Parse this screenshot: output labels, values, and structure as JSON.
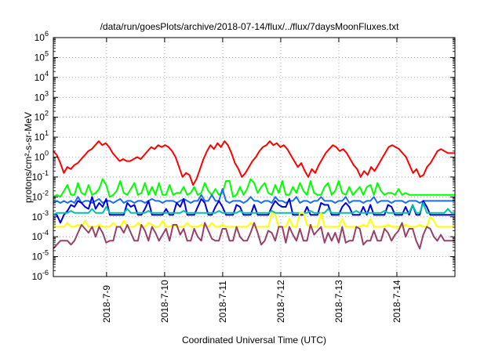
{
  "chart_data": {
    "type": "line",
    "title": "/data/run/goesPlots/archive/2018-07-14/flux/../flux/7daysMoonFluxes.txt",
    "xlabel": "Coordinated Universal Time (UTC)",
    "ylabel": "protons/cm²-s-sr-MeV",
    "yscale": "log",
    "ylim_exponent": [
      -6,
      6
    ],
    "y_ticks": [
      "10-6",
      "10-5",
      "10-4",
      "10-3",
      "10-2",
      "10-1",
      "100",
      "101",
      "102",
      "103",
      "104",
      "105",
      "106"
    ],
    "xlim_days": [
      "2018-07-08 02:00",
      "2018-07-15 00:00"
    ],
    "x_ticks": [
      "2018-7-9",
      "2018-7-10",
      "2018-7-11",
      "2018-7-12",
      "2018-7-13",
      "2018-7-14"
    ],
    "grid": true,
    "legend": "none",
    "series": [
      {
        "color": "#ff0000",
        "log10_values": [
          0.3,
          0.1,
          -0.3,
          -0.8,
          -0.5,
          -0.6,
          -0.4,
          -0.3,
          -0.1,
          0.1,
          0.3,
          0.4,
          0.6,
          0.8,
          0.6,
          0.7,
          0.5,
          0.2,
          0.0,
          -0.2,
          -0.1,
          -0.2,
          -0.2,
          -0.1,
          0.0,
          -0.1,
          0.1,
          0.3,
          0.5,
          0.4,
          0.6,
          0.5,
          0.6,
          0.5,
          0.3,
          0.0,
          -0.5,
          -1.0,
          -0.8,
          -0.9,
          -1.4,
          -1.1,
          -0.6,
          -0.1,
          0.3,
          0.6,
          0.4,
          0.7,
          0.5,
          0.8,
          0.6,
          0.2,
          -0.3,
          -0.6,
          -1.0,
          -0.8,
          -0.5,
          -0.2,
          0.0,
          0.3,
          0.5,
          0.6,
          0.8,
          0.6,
          0.7,
          0.5,
          0.6,
          0.4,
          0.1,
          -0.2,
          -0.5,
          -0.3,
          -0.7,
          -1.0,
          -0.6,
          -0.8,
          -0.4,
          -0.1,
          0.2,
          0.4,
          0.6,
          0.5,
          0.3,
          0.4,
          0.2,
          -0.1,
          -0.4,
          -0.6,
          -1.0,
          -0.7,
          -0.9,
          -0.5,
          -0.7,
          -0.4,
          -0.1,
          0.2,
          0.5,
          0.6,
          0.5,
          0.4,
          0.2,
          0.0,
          -0.4,
          -0.8,
          -0.6,
          -1.0,
          -0.9,
          -0.5,
          -0.3,
          0.0,
          0.3,
          0.4,
          0.3,
          0.2,
          0.2,
          0.2
        ]
      },
      {
        "color": "#00ff00",
        "log10_values": [
          -2.0,
          -1.9,
          -2.0,
          -1.7,
          -1.4,
          -1.9,
          -1.9,
          -1.3,
          -1.8,
          -1.9,
          -1.4,
          -1.9,
          -1.8,
          -1.6,
          -1.1,
          -1.4,
          -2.0,
          -1.9,
          -1.7,
          -1.2,
          -1.8,
          -1.9,
          -1.6,
          -1.3,
          -1.9,
          -1.8,
          -1.3,
          -1.9,
          -1.5,
          -1.9,
          -1.3,
          -1.9,
          -1.9,
          -1.4,
          -1.9,
          -1.8,
          -1.8,
          -1.5,
          -1.9,
          -1.8,
          -1.5,
          -1.9,
          -1.8,
          -1.3,
          -1.7,
          -1.9,
          -1.6,
          -1.9,
          -1.8,
          -1.2,
          -1.2,
          -2.0,
          -1.9,
          -1.5,
          -1.9,
          -1.6,
          -1.1,
          -1.3,
          -1.8,
          -1.5,
          -1.3,
          -1.8,
          -1.9,
          -1.4,
          -1.8,
          -1.2,
          -1.9,
          -1.9,
          -1.5,
          -1.8,
          -1.3,
          -1.7,
          -1.9,
          -1.2,
          -1.8,
          -1.9,
          -1.9,
          -1.5,
          -1.3,
          -1.9,
          -1.7,
          -1.2,
          -1.8,
          -1.9,
          -1.5,
          -1.9,
          -1.7,
          -1.5,
          -1.9,
          -1.5,
          -1.4,
          -1.9,
          -1.3,
          -1.7,
          -1.9,
          -1.8,
          -1.8,
          -1.9,
          -1.6,
          -1.9,
          -1.8,
          -1.9,
          -1.9,
          -1.9,
          -1.9,
          -1.9,
          -1.9,
          -1.9,
          -1.9,
          -1.9,
          -1.9,
          -1.9,
          -1.9,
          -1.9,
          -1.9
        ]
      },
      {
        "color": "#1a6ff0",
        "log10_values": [
          -2.3,
          -2.2,
          -2.3,
          -2.2,
          -2.3,
          -2.2,
          -2.3,
          -2.0,
          -2.3,
          -2.2,
          -2.2,
          -2.3,
          -2.2,
          -2.1,
          -2.3,
          -2.2,
          -2.2,
          -2.3,
          -2.2,
          -2.1,
          -2.3,
          -2.2,
          -2.2,
          -2.3,
          -2.2,
          -2.2,
          -2.3,
          -2.2,
          -2.1,
          -2.2,
          -2.2,
          -2.3,
          -2.2,
          -2.2,
          -2.2,
          -2.3,
          -2.2,
          -2.1,
          -2.2,
          -2.3,
          -2.2,
          -2.2,
          -1.9,
          -2.2,
          -2.2,
          -1.9,
          -2.2,
          -2.2,
          -1.6,
          -2.2,
          -2.3,
          -2.2,
          -2.2,
          -2.2,
          -2.3,
          -2.2,
          -2.0,
          -2.2,
          -2.2,
          -2.3,
          -2.2,
          -2.2,
          -2.3,
          -2.0,
          -2.2,
          -2.2,
          -2.3,
          -2.2,
          -2.2,
          -2.0,
          -2.3,
          -2.2,
          -2.2,
          -2.3,
          -2.2,
          -2.2,
          -2.0,
          -2.2,
          -2.2,
          -2.2,
          -2.3,
          -2.2,
          -2.2,
          -2.0,
          -2.3,
          -2.2,
          -2.2,
          -2.2,
          -2.3,
          -2.2,
          -2.2,
          -2.0,
          -2.3,
          -2.2,
          -2.2,
          -2.2,
          -2.3,
          -2.2,
          -2.2,
          -2.2,
          -2.3,
          -2.2,
          -2.2,
          -2.2,
          -2.3,
          -2.2,
          -2.2,
          -2.2,
          -2.2,
          -2.2,
          -2.2,
          -2.2,
          -2.2,
          -2.2,
          -2.2
        ]
      },
      {
        "color": "#0000dd",
        "log10_values": [
          -2.9,
          -2.9,
          -3.3,
          -2.9,
          -2.7,
          -2.4,
          -2.5,
          -2.2,
          -2.3,
          -2.5,
          -2.6,
          -2.0,
          -2.6,
          -2.3,
          -2.5,
          -2.1,
          -2.9,
          -2.9,
          -2.9,
          -2.9,
          -2.9,
          -2.3,
          -2.5,
          -2.4,
          -2.9,
          -2.9,
          -2.6,
          -2.2,
          -2.9,
          -2.9,
          -2.9,
          -2.9,
          -2.6,
          -2.9,
          -2.9,
          -2.3,
          -2.5,
          -2.1,
          -2.9,
          -2.9,
          -2.9,
          -2.5,
          -2.1,
          -2.3,
          -2.9,
          -2.9,
          -2.5,
          -2.2,
          -2.5,
          -2.9,
          -2.9,
          -2.9,
          -2.4,
          -2.5,
          -2.9,
          -2.9,
          -2.9,
          -2.4,
          -2.9,
          -2.9,
          -2.9,
          -2.9,
          -2.5,
          -2.2,
          -2.4,
          -2.5,
          -2.5,
          -2.1,
          -2.9,
          -2.9,
          -2.9,
          -2.9,
          -2.5,
          -2.9,
          -2.9,
          -2.9,
          -2.3,
          -2.4,
          -2.4,
          -2.9,
          -2.9,
          -2.9,
          -2.5,
          -2.3,
          -2.5,
          -2.9,
          -2.9,
          -2.9,
          -2.5,
          -2.9,
          -2.4,
          -2.9,
          -2.9,
          -2.9,
          -2.9,
          -2.4,
          -2.5,
          -2.9,
          -2.9,
          -2.9,
          -2.5,
          -2.9,
          -2.4,
          -2.9,
          -2.9,
          -2.2,
          -2.5,
          -2.9,
          -2.9,
          -2.9,
          -2.9,
          -2.9,
          -2.9,
          -2.9,
          -2.9
        ]
      },
      {
        "color": "#00c0a8",
        "log10_values": [
          -2.9,
          -2.8,
          -2.8,
          -2.8,
          -2.8,
          -2.7,
          -2.8,
          -2.8,
          -2.8,
          -2.8,
          -2.8,
          -2.6,
          -2.8,
          -2.8,
          -2.8,
          -2.5,
          -2.8,
          -2.8,
          -2.8,
          -2.8,
          -2.8,
          -2.6,
          -2.8,
          -2.8,
          -2.8,
          -2.8,
          -2.8,
          -2.7,
          -2.8,
          -2.8,
          -2.8,
          -2.8,
          -2.8,
          -2.8,
          -2.8,
          -2.8,
          -2.8,
          -2.7,
          -2.8,
          -2.8,
          -2.8,
          -2.8,
          -2.8,
          -2.8,
          -2.8,
          -2.8,
          -2.8,
          -2.7,
          -2.8,
          -2.8,
          -2.8,
          -2.8,
          -2.8,
          -2.7,
          -2.8,
          -2.8,
          -2.8,
          -2.8,
          -2.8,
          -2.8,
          -2.8,
          -2.8,
          -2.7,
          -2.8,
          -2.8,
          -2.8,
          -2.8,
          -2.8,
          -2.8,
          -2.8,
          -2.8,
          -2.8,
          -2.8,
          -2.7,
          -2.8,
          -2.8,
          -2.8,
          -2.8,
          -2.6,
          -2.8,
          -2.8,
          -2.8,
          -2.8,
          -2.8,
          -2.8,
          -2.8,
          -2.7,
          -2.8,
          -2.8,
          -2.8,
          -2.8,
          -2.8,
          -2.8,
          -2.8,
          -2.7,
          -2.8,
          -2.8,
          -2.8,
          -2.8,
          -2.8,
          -2.8,
          -2.8,
          -2.4,
          -2.8,
          -2.8,
          -2.3,
          -2.8,
          -2.8,
          -2.8,
          -2.8,
          -2.8,
          -2.8,
          -2.6,
          -2.8,
          -2.8
        ]
      },
      {
        "color": "#ffff00",
        "log10_values": [
          -3.5,
          -3.5,
          -3.5,
          -3.5,
          -3.3,
          -3.5,
          -3.5,
          -3.4,
          -3.5,
          -3.2,
          -3.5,
          -3.5,
          -3.5,
          -3.4,
          -3.5,
          -3.5,
          -3.5,
          -3.3,
          -3.5,
          -3.5,
          -3.2,
          -3.5,
          -3.5,
          -3.5,
          -3.3,
          -3.5,
          -3.5,
          -3.3,
          -3.4,
          -3.5,
          -3.5,
          -3.2,
          -3.5,
          -3.5,
          -3.4,
          -3.5,
          -3.5,
          -3.5,
          -3.3,
          -3.5,
          -3.5,
          -3.5,
          -3.4,
          -3.5,
          -3.5,
          -3.3,
          -3.5,
          -3.5,
          -3.4,
          -3.5,
          -3.5,
          -3.5,
          -3.5,
          -3.5,
          -3.5,
          -3.5,
          -3.3,
          -3.5,
          -3.5,
          -3.5,
          -3.5,
          -3.5,
          -2.8,
          -2.9,
          -3.5,
          -3.5,
          -3.5,
          -3.1,
          -3.5,
          -3.5,
          -2.8,
          -2.8,
          -3.4,
          -3.5,
          -3.5,
          -3.5,
          -2.8,
          -3.5,
          -3.5,
          -3.5,
          -3.5,
          -3.5,
          -3.1,
          -3.5,
          -3.5,
          -3.5,
          -3.5,
          -3.5,
          -3.4,
          -3.5,
          -3.1,
          -3.5,
          -3.5,
          -3.5,
          -3.5,
          -3.4,
          -3.5,
          -3.5,
          -3.5,
          -3.5,
          -3.4,
          -3.5,
          -3.5,
          -3.5,
          -3.4,
          -3.5,
          -3.5,
          -3.0,
          -3.2,
          -3.5,
          -3.5,
          -3.5,
          -3.5,
          -3.5,
          -3.5
        ]
      },
      {
        "color": "#98406c",
        "log10_values": [
          -4.6,
          -4.4,
          -4.2,
          -4.2,
          -4.2,
          -4.4,
          -4.2,
          -3.8,
          -3.4,
          -3.6,
          -3.8,
          -3.5,
          -4.0,
          -3.5,
          -3.8,
          -4.3,
          -4.2,
          -4.2,
          -3.5,
          -3.5,
          -3.8,
          -3.4,
          -3.8,
          -4.2,
          -4.2,
          -3.4,
          -3.7,
          -4.2,
          -3.5,
          -3.8,
          -4.2,
          -3.9,
          -3.6,
          -4.2,
          -3.4,
          -3.4,
          -3.9,
          -3.6,
          -4.2,
          -4.2,
          -3.6,
          -4.0,
          -4.2,
          -3.3,
          -3.7,
          -4.1,
          -4.2,
          -4.2,
          -3.6,
          -3.6,
          -4.2,
          -4.2,
          -3.5,
          -4.0,
          -4.2,
          -4.2,
          -3.8,
          -3.3,
          -3.8,
          -4.4,
          -4.2,
          -3.7,
          -3.8,
          -4.2,
          -3.5,
          -3.5,
          -4.3,
          -3.5,
          -3.9,
          -4.2,
          -3.6,
          -4.2,
          -4.2,
          -3.4,
          -3.9,
          -3.7,
          -3.5,
          -4.3,
          -3.8,
          -4.2,
          -3.8,
          -4.3,
          -3.5,
          -4.3,
          -4.2,
          -4.2,
          -3.5,
          -3.6,
          -4.4,
          -4.2,
          -4.2,
          -3.7,
          -4.2,
          -4.2,
          -3.6,
          -3.8,
          -4.2,
          -3.9,
          -3.7,
          -3.3,
          -4.0,
          -3.6,
          -3.6,
          -4.2,
          -4.6,
          -3.9,
          -3.5,
          -3.6,
          -4.0,
          -4.2,
          -3.9,
          -4.2,
          -4.2,
          -4.2,
          -4.2
        ]
      }
    ]
  }
}
